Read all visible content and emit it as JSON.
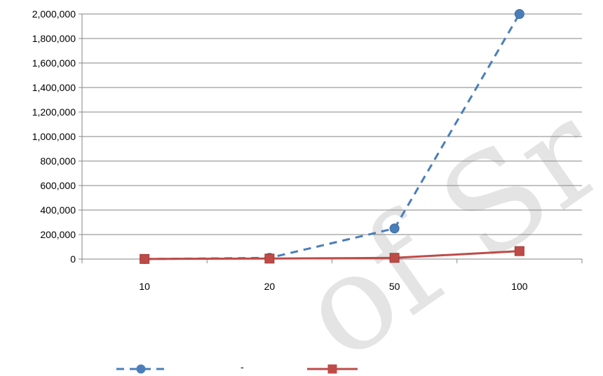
{
  "chart_data": {
    "type": "line",
    "categories": [
      "10",
      "20",
      "50",
      "100"
    ],
    "series": [
      {
        "values": [
          100,
          10000,
          250000,
          2000000
        ],
        "color": "#4a7ebb",
        "line_style": "dashed",
        "marker": "circle"
      },
      {
        "values": [
          1000,
          4000,
          10000,
          65000
        ],
        "color": "#be4b48",
        "line_style": "solid",
        "marker": "square"
      }
    ],
    "ylim": [
      0,
      2000000
    ],
    "yticks": [
      0,
      200000,
      400000,
      600000,
      800000,
      1000000,
      1200000,
      1400000,
      1600000,
      1800000,
      2000000
    ],
    "ytick_labels": [
      "0",
      "200,000",
      "400,000",
      "600,000",
      "800,000",
      "1,000,000",
      "1,200,000",
      "1,400,000",
      "1,600,000",
      "1,800,000",
      "2,000,000"
    ],
    "grid": true,
    "legend_position": "bottom",
    "legend_middle_text": "-",
    "watermark_text": "of Sr"
  }
}
